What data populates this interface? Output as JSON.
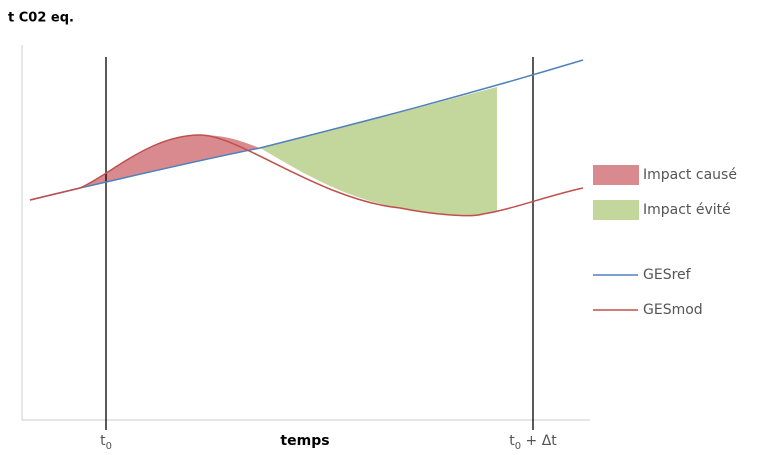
{
  "axis": {
    "y_label": "t C02 eq.",
    "x_label": "temps"
  },
  "markers": [
    {
      "label": "t",
      "subscript": "0"
    },
    {
      "label": "t",
      "subscript": "0",
      "suffix": " + Δt"
    }
  ],
  "legend": [
    "Impact causé",
    "Impact évité",
    "GESref",
    "GESmod"
  ]
}
